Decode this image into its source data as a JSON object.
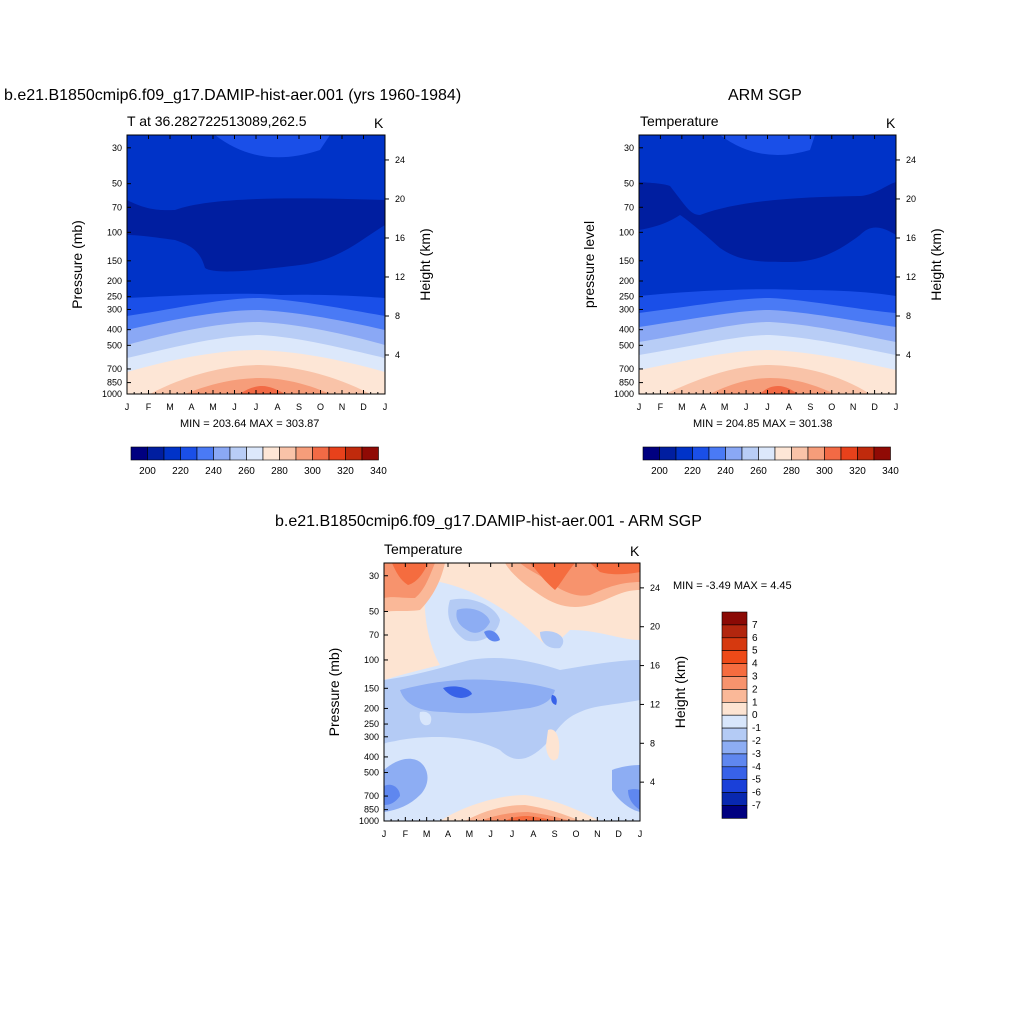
{
  "panels": [
    {
      "title": "b.e21.B1850cmip6.f09_g17.DAMIP-hist-aer.001 (yrs 1960-1984)",
      "subtitle_left": "T at 36.282722513089,262.5",
      "subtitle_right": "K",
      "ylabel_left": "Pressure (mb)",
      "ylabel_right": "Height (km)",
      "minmax": "MIN = 203.64 MAX = 303.87"
    },
    {
      "title": "ARM SGP",
      "subtitle_left": "Temperature",
      "subtitle_right": "K",
      "ylabel_left": "pressure level",
      "ylabel_right": "Height (km)",
      "minmax": "MIN = 204.85 MAX = 301.38"
    },
    {
      "title": "b.e21.B1850cmip6.f09_g17.DAMIP-hist-aer.001 - ARM SGP",
      "subtitle_left": "Temperature",
      "subtitle_right": "K",
      "ylabel_left": "Pressure (mb)",
      "ylabel_right": "Height (km)",
      "minmax": "MIN =  -3.49 MAX =   4.45"
    }
  ],
  "chart_data": [
    {
      "type": "heatmap",
      "title": "b.e21.B1850cmip6.f09_g17.DAMIP-hist-aer.001 (yrs 1960-1984)",
      "variable": "T at 36.282722513089,262.5",
      "units": "K",
      "x_ticks": [
        "J",
        "F",
        "M",
        "A",
        "M",
        "J",
        "J",
        "A",
        "S",
        "O",
        "N",
        "D",
        "J"
      ],
      "y_ticks_pressure": [
        30,
        50,
        70,
        100,
        150,
        200,
        250,
        300,
        400,
        500,
        700,
        850,
        1000
      ],
      "y_ticks_height": [
        24,
        20,
        16,
        12,
        8,
        4
      ],
      "ylim": [
        1000,
        25
      ],
      "colorbar_ticks": [
        200,
        220,
        240,
        260,
        280,
        300,
        320,
        340
      ],
      "min": 203.64,
      "max": 303.87
    },
    {
      "type": "heatmap",
      "title": "ARM SGP",
      "variable": "Temperature",
      "units": "K",
      "x_ticks": [
        "J",
        "F",
        "M",
        "A",
        "M",
        "J",
        "J",
        "A",
        "S",
        "O",
        "N",
        "D",
        "J"
      ],
      "y_ticks_pressure": [
        30,
        50,
        70,
        100,
        150,
        200,
        250,
        300,
        400,
        500,
        700,
        850,
        1000
      ],
      "y_ticks_height": [
        24,
        20,
        16,
        12,
        8,
        4
      ],
      "ylim": [
        1000,
        25
      ],
      "colorbar_ticks": [
        200,
        220,
        240,
        260,
        280,
        300,
        320,
        340
      ],
      "min": 204.85,
      "max": 301.38
    },
    {
      "type": "heatmap",
      "title": "b.e21.B1850cmip6.f09_g17.DAMIP-hist-aer.001 - ARM SGP",
      "variable": "Temperature",
      "units": "K",
      "x_ticks": [
        "J",
        "F",
        "M",
        "A",
        "M",
        "J",
        "J",
        "A",
        "S",
        "O",
        "N",
        "D",
        "J"
      ],
      "y_ticks_pressure": [
        30,
        50,
        70,
        100,
        150,
        200,
        250,
        300,
        400,
        500,
        700,
        850,
        1000
      ],
      "y_ticks_height": [
        24,
        20,
        16,
        12,
        8,
        4
      ],
      "ylim": [
        1000,
        25
      ],
      "colorbar_ticks": [
        7,
        6,
        5,
        4,
        3,
        2,
        1,
        0,
        -1,
        -2,
        -3,
        -4,
        -5,
        -6,
        -7
      ],
      "min": -3.49,
      "max": 4.45
    }
  ],
  "colors": {
    "temp_scale": [
      "#000080",
      "#001ea0",
      "#0033c8",
      "#1a4fe8",
      "#4a7af5",
      "#8aa8f5",
      "#b8cdf6",
      "#dce8fb",
      "#fde6d6",
      "#f9c3a8",
      "#f69d7a",
      "#f26a45",
      "#e8411b",
      "#c02a0c",
      "#900a05"
    ],
    "diff_scale": [
      "#8b0a05",
      "#b2260e",
      "#d6390f",
      "#ee4a18",
      "#f56c3f",
      "#f7936d",
      "#fab898",
      "#fde4d2",
      "#d8e6fb",
      "#b4cbf5",
      "#8dadf3",
      "#5f87ef",
      "#3862e8",
      "#1a40d9",
      "#0828b0",
      "#000080"
    ]
  }
}
